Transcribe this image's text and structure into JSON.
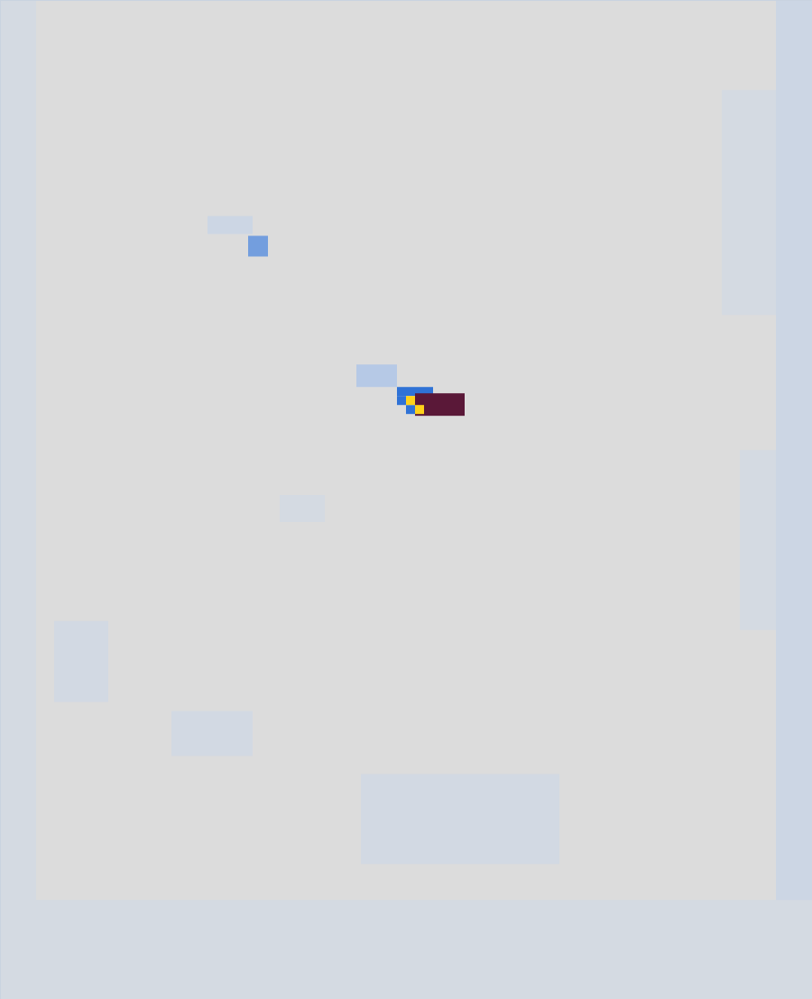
{
  "chart_data": {
    "type": "heatmap",
    "xlim": [
      0,
      90
    ],
    "ylim": [
      0,
      111
    ],
    "tick_labels": false,
    "cells": [
      [
        86,
        90,
        0,
        111,
        0.6
      ],
      [
        80,
        86,
        10,
        35,
        0.4
      ],
      [
        82,
        86,
        50,
        70,
        0.4
      ],
      [
        0,
        4,
        0,
        111,
        0.4
      ],
      [
        0,
        90,
        100,
        111,
        0.4
      ],
      [
        40,
        62,
        86,
        96,
        0.5
      ],
      [
        19,
        28,
        79,
        84,
        0.5
      ],
      [
        31,
        36,
        55,
        58,
        0.4
      ],
      [
        6,
        12,
        69,
        78,
        0.5
      ],
      [
        23,
        28,
        24,
        26,
        0.6
      ],
      [
        27.5,
        29.7,
        26.2,
        28.5,
        1.5
      ],
      [
        39.5,
        44,
        40.5,
        43,
        1
      ],
      [
        44,
        48,
        43,
        44,
        2
      ],
      [
        44,
        45,
        44,
        45,
        2
      ],
      [
        45,
        46,
        45,
        46,
        2
      ],
      [
        46,
        51.5,
        43.7,
        46.2,
        4
      ],
      [
        45,
        46,
        44,
        45,
        3
      ],
      [
        46,
        47,
        45,
        46,
        3
      ]
    ]
  }
}
